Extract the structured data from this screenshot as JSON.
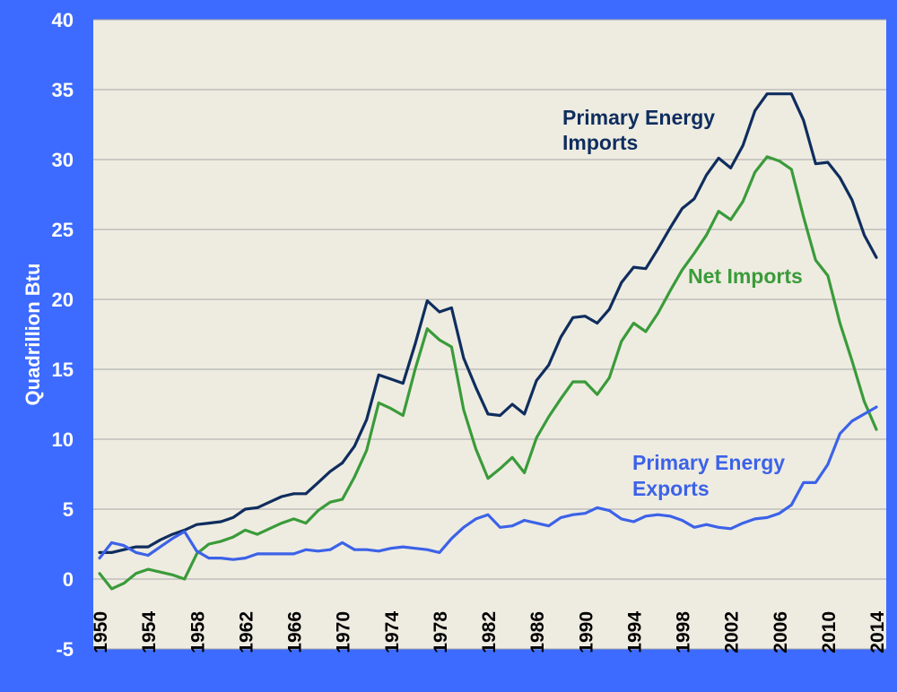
{
  "chart_data": {
    "type": "line",
    "title": "",
    "xlabel": "",
    "ylabel": "Quadrillion Btu",
    "ylim": [
      -5,
      40
    ],
    "xlim": [
      1950,
      2014
    ],
    "yticks": [
      -5,
      0,
      5,
      10,
      15,
      20,
      25,
      30,
      35,
      40
    ],
    "ytick_labels": [
      "-5",
      "0",
      "5",
      "10",
      "15",
      "20",
      "25",
      "30",
      "35",
      "40"
    ],
    "xticks": [
      1950,
      1954,
      1958,
      1962,
      1966,
      1970,
      1974,
      1978,
      1982,
      1986,
      1990,
      1994,
      1998,
      2002,
      2006,
      2010,
      2014
    ],
    "xtick_labels": [
      "1950",
      "1954",
      "1958",
      "1962",
      "1966",
      "1970",
      "1974",
      "1978",
      "1982",
      "1986",
      "1990",
      "1994",
      "1998",
      "2002",
      "2006",
      "2010",
      "2014"
    ],
    "grid": true,
    "x": [
      1950,
      1951,
      1952,
      1953,
      1954,
      1955,
      1956,
      1957,
      1958,
      1959,
      1960,
      1961,
      1962,
      1963,
      1964,
      1965,
      1966,
      1967,
      1968,
      1969,
      1970,
      1971,
      1972,
      1973,
      1974,
      1975,
      1976,
      1977,
      1978,
      1979,
      1980,
      1981,
      1982,
      1983,
      1984,
      1985,
      1986,
      1987,
      1988,
      1989,
      1990,
      1991,
      1992,
      1993,
      1994,
      1995,
      1996,
      1997,
      1998,
      1999,
      2000,
      2001,
      2002,
      2003,
      2004,
      2005,
      2006,
      2007,
      2008,
      2009,
      2010,
      2011,
      2012,
      2013,
      2014
    ],
    "series": [
      {
        "name": "Primary Energy Imports",
        "color": "#0f2d5e",
        "values": [
          1.9,
          1.9,
          2.1,
          2.3,
          2.3,
          2.8,
          3.2,
          3.5,
          3.9,
          4.0,
          4.1,
          4.4,
          5.0,
          5.1,
          5.5,
          5.9,
          6.1,
          6.1,
          6.9,
          7.7,
          8.3,
          9.5,
          11.4,
          14.6,
          14.3,
          14.0,
          16.8,
          19.9,
          19.1,
          19.4,
          15.8,
          13.7,
          11.8,
          11.7,
          12.5,
          11.8,
          14.2,
          15.3,
          17.3,
          18.7,
          18.8,
          18.3,
          19.3,
          21.2,
          22.3,
          22.2,
          23.6,
          25.1,
          26.5,
          27.2,
          28.9,
          30.1,
          29.4,
          31.0,
          33.5,
          34.7,
          34.7,
          34.7,
          32.8,
          29.7,
          29.8,
          28.7,
          27.1,
          24.6,
          23.0
        ]
      },
      {
        "name": "Net Imports",
        "color": "#3a9b3a",
        "values": [
          0.4,
          -0.7,
          -0.3,
          0.4,
          0.7,
          0.5,
          0.3,
          0.0,
          1.8,
          2.5,
          2.7,
          3.0,
          3.5,
          3.2,
          3.6,
          4.0,
          4.3,
          4.0,
          4.9,
          5.5,
          5.7,
          7.3,
          9.2,
          12.6,
          12.2,
          11.7,
          15.0,
          17.9,
          17.1,
          16.6,
          12.1,
          9.3,
          7.2,
          7.9,
          8.7,
          7.6,
          10.1,
          11.6,
          12.9,
          14.1,
          14.1,
          13.2,
          14.4,
          17.0,
          18.3,
          17.7,
          19.0,
          20.6,
          22.1,
          23.3,
          24.6,
          26.3,
          25.7,
          27.0,
          29.1,
          30.2,
          29.9,
          29.3,
          25.9,
          22.8,
          21.7,
          18.3,
          15.6,
          12.7,
          10.7
        ]
      },
      {
        "name": "Primary Energy Exports",
        "color": "#3c62e8",
        "values": [
          1.5,
          2.6,
          2.4,
          1.9,
          1.7,
          2.3,
          2.9,
          3.4,
          2.0,
          1.5,
          1.5,
          1.4,
          1.5,
          1.8,
          1.8,
          1.8,
          1.8,
          2.1,
          2.0,
          2.1,
          2.6,
          2.1,
          2.1,
          2.0,
          2.2,
          2.3,
          2.2,
          2.1,
          1.9,
          2.9,
          3.7,
          4.3,
          4.6,
          3.7,
          3.8,
          4.2,
          4.0,
          3.8,
          4.4,
          4.6,
          4.7,
          5.1,
          4.9,
          4.3,
          4.1,
          4.5,
          4.6,
          4.5,
          4.2,
          3.7,
          3.9,
          3.7,
          3.6,
          4.0,
          4.3,
          4.4,
          4.7,
          5.3,
          6.9,
          6.9,
          8.2,
          10.4,
          11.3,
          11.8,
          12.3
        ]
      }
    ],
    "annotations": [
      {
        "text_lines": [
          "Primary Energy",
          "Imports"
        ],
        "series": "Primary Energy Imports"
      },
      {
        "text_lines": [
          "Net Imports"
        ],
        "series": "Net Imports"
      },
      {
        "text_lines": [
          "Primary Energy",
          "Exports"
        ],
        "series": "Primary Energy Exports"
      }
    ]
  },
  "colors": {
    "frame": "#3d6bff",
    "plot_background": "#eeece1",
    "grid": "#a6a6a6"
  }
}
